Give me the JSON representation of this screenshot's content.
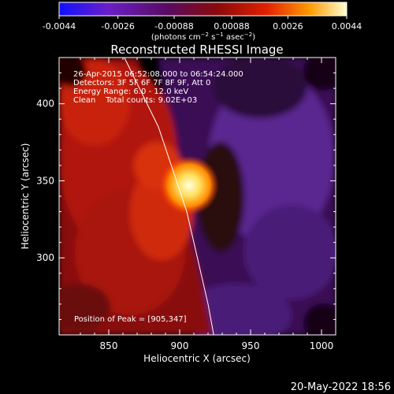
{
  "colorbar": {
    "ticks": [
      "-0.0044",
      "-0.0026",
      "-0.00088",
      "0.00088",
      "0.0026",
      "0.0044"
    ],
    "tick_values": [
      -0.0044,
      -0.0026,
      -0.00088,
      0.00088,
      0.0026,
      0.0044
    ],
    "range": [
      -0.0044,
      0.0044
    ],
    "unit_prefix": "(photons cm",
    "unit_exp1": "−2",
    "unit_mid": " s",
    "unit_exp2": "−1",
    "unit_mid2": " asec",
    "unit_exp3": "−2",
    "unit_suffix": ")",
    "colors": [
      "#1010ff",
      "#6a1fc8",
      "#5a0a60",
      "#8a0a0a",
      "#e02000",
      "#ff9a00",
      "#ffffd0"
    ]
  },
  "chart_data": {
    "type": "heatmap",
    "title": "Reconstructed RHESSI Image",
    "xlabel": "Heliocentric X (arcsec)",
    "ylabel": "Heliocentric Y (arcsec)",
    "xlim": [
      815,
      1010
    ],
    "ylim": [
      250,
      430
    ],
    "xticks": [
      850,
      900,
      950,
      1000
    ],
    "yticks": [
      300,
      350,
      400
    ],
    "xtick_labels": [
      "850",
      "900",
      "950",
      "1000"
    ],
    "ytick_labels": [
      "300",
      "350",
      "400"
    ],
    "peak": [
      905,
      347
    ],
    "limb": [
      [
        861,
        430
      ],
      [
        885,
        385
      ],
      [
        905,
        330
      ],
      [
        920,
        270
      ],
      [
        924,
        250
      ]
    ]
  },
  "annotations": {
    "line1": "26-Apr-2015 06:52:08.000 to 06:54:24.000",
    "line2": "Detectors: 3F 5F 6F 7F 8F 9F, Att 0",
    "line3": "Energy Range: 6.0 - 12.0 keV",
    "line4": "Clean    Total counts: 9.02E+03",
    "peak_label": "Position of Peak = [905,347]"
  },
  "footer": {
    "date": "20-May-2022 18:56"
  }
}
